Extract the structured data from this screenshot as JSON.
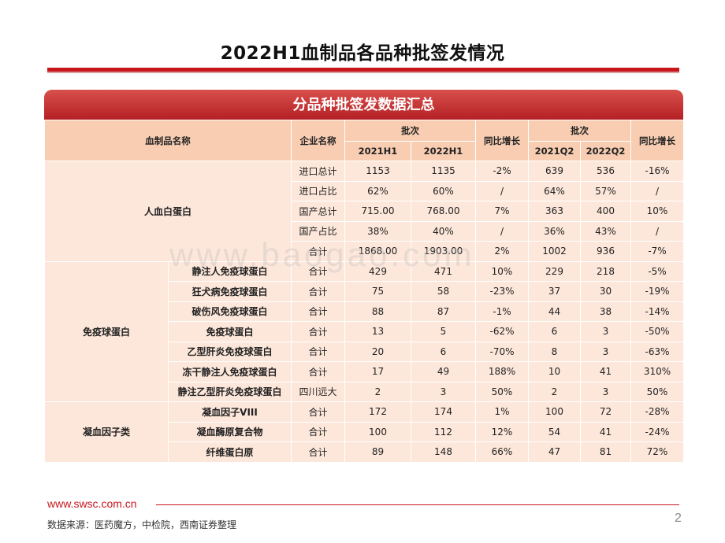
{
  "title": "2022H1血制品各品种批签发情况",
  "banner": "分品种批签发数据汇总",
  "headers": {
    "product": "血制品名称",
    "enterprise": "企业名称",
    "batches_h": "批次",
    "y2021h1": "2021H1",
    "y2022h1": "2022H1",
    "yoy_h": "同比增长",
    "batches_q": "批次",
    "q2021q2": "2021Q2",
    "q2022q2": "2022Q2",
    "yoy_q": "同比增长"
  },
  "groups": {
    "albumin": "人血白蛋白",
    "immunoglobulin": "免疫球蛋白",
    "coagulation": "凝血因子类"
  },
  "rows": [
    {
      "sub": "",
      "ent": "进口总计",
      "h21": "1153",
      "h22": "1135",
      "yh": "-2%",
      "q21": "639",
      "q22": "536",
      "yq": "-16%"
    },
    {
      "sub": "",
      "ent": "进口占比",
      "h21": "62%",
      "h22": "60%",
      "yh": "/",
      "q21": "64%",
      "q22": "57%",
      "yq": "/"
    },
    {
      "sub": "",
      "ent": "国产总计",
      "h21": "715.00",
      "h22": "768.00",
      "yh": "7%",
      "q21": "363",
      "q22": "400",
      "yq": "10%"
    },
    {
      "sub": "",
      "ent": "国产占比",
      "h21": "38%",
      "h22": "40%",
      "yh": "/",
      "q21": "36%",
      "q22": "43%",
      "yq": "/"
    },
    {
      "sub": "",
      "ent": "合计",
      "h21": "1868.00",
      "h22": "1903.00",
      "yh": "2%",
      "q21": "1002",
      "q22": "936",
      "yq": "-7%"
    },
    {
      "sub": "静注人免疫球蛋白",
      "ent": "合计",
      "h21": "429",
      "h22": "471",
      "yh": "10%",
      "q21": "229",
      "q22": "218",
      "yq": "-5%"
    },
    {
      "sub": "狂犬病免疫球蛋白",
      "ent": "合计",
      "h21": "75",
      "h22": "58",
      "yh": "-23%",
      "q21": "37",
      "q22": "30",
      "yq": "-19%"
    },
    {
      "sub": "破伤风免疫球蛋白",
      "ent": "合计",
      "h21": "88",
      "h22": "87",
      "yh": "-1%",
      "q21": "44",
      "q22": "38",
      "yq": "-14%"
    },
    {
      "sub": "免疫球蛋白",
      "ent": "合计",
      "h21": "13",
      "h22": "5",
      "yh": "-62%",
      "q21": "6",
      "q22": "3",
      "yq": "-50%"
    },
    {
      "sub": "乙型肝炎免疫球蛋白",
      "ent": "合计",
      "h21": "20",
      "h22": "6",
      "yh": "-70%",
      "q21": "8",
      "q22": "3",
      "yq": "-63%"
    },
    {
      "sub": "冻干静注人免疫球蛋白",
      "ent": "合计",
      "h21": "17",
      "h22": "49",
      "yh": "188%",
      "q21": "10",
      "q22": "41",
      "yq": "310%"
    },
    {
      "sub": "静注乙型肝炎免疫球蛋白",
      "ent": "四川远大",
      "h21": "2",
      "h22": "3",
      "yh": "50%",
      "q21": "2",
      "q22": "3",
      "yq": "50%"
    },
    {
      "sub": "凝血因子VIII",
      "ent": "合计",
      "h21": "172",
      "h22": "174",
      "yh": "1%",
      "q21": "100",
      "q22": "72",
      "yq": "-28%"
    },
    {
      "sub": "凝血酶原复合物",
      "ent": "合计",
      "h21": "100",
      "h22": "112",
      "yh": "12%",
      "q21": "54",
      "q22": "41",
      "yq": "-24%"
    },
    {
      "sub": "纤维蛋白原",
      "ent": "合计",
      "h21": "89",
      "h22": "148",
      "yh": "66%",
      "q21": "47",
      "q22": "81",
      "yq": "72%"
    }
  ],
  "watermark": "www.baogao.com",
  "footer": {
    "url": "www.swsc.com.cn",
    "source": "数据来源：医药魔方，中检院，西南证券整理",
    "page": "2"
  },
  "colors": {
    "accent_red": "#c7161e",
    "header_fill": "#f8cdb2",
    "cell_fill": "#fde7da"
  }
}
